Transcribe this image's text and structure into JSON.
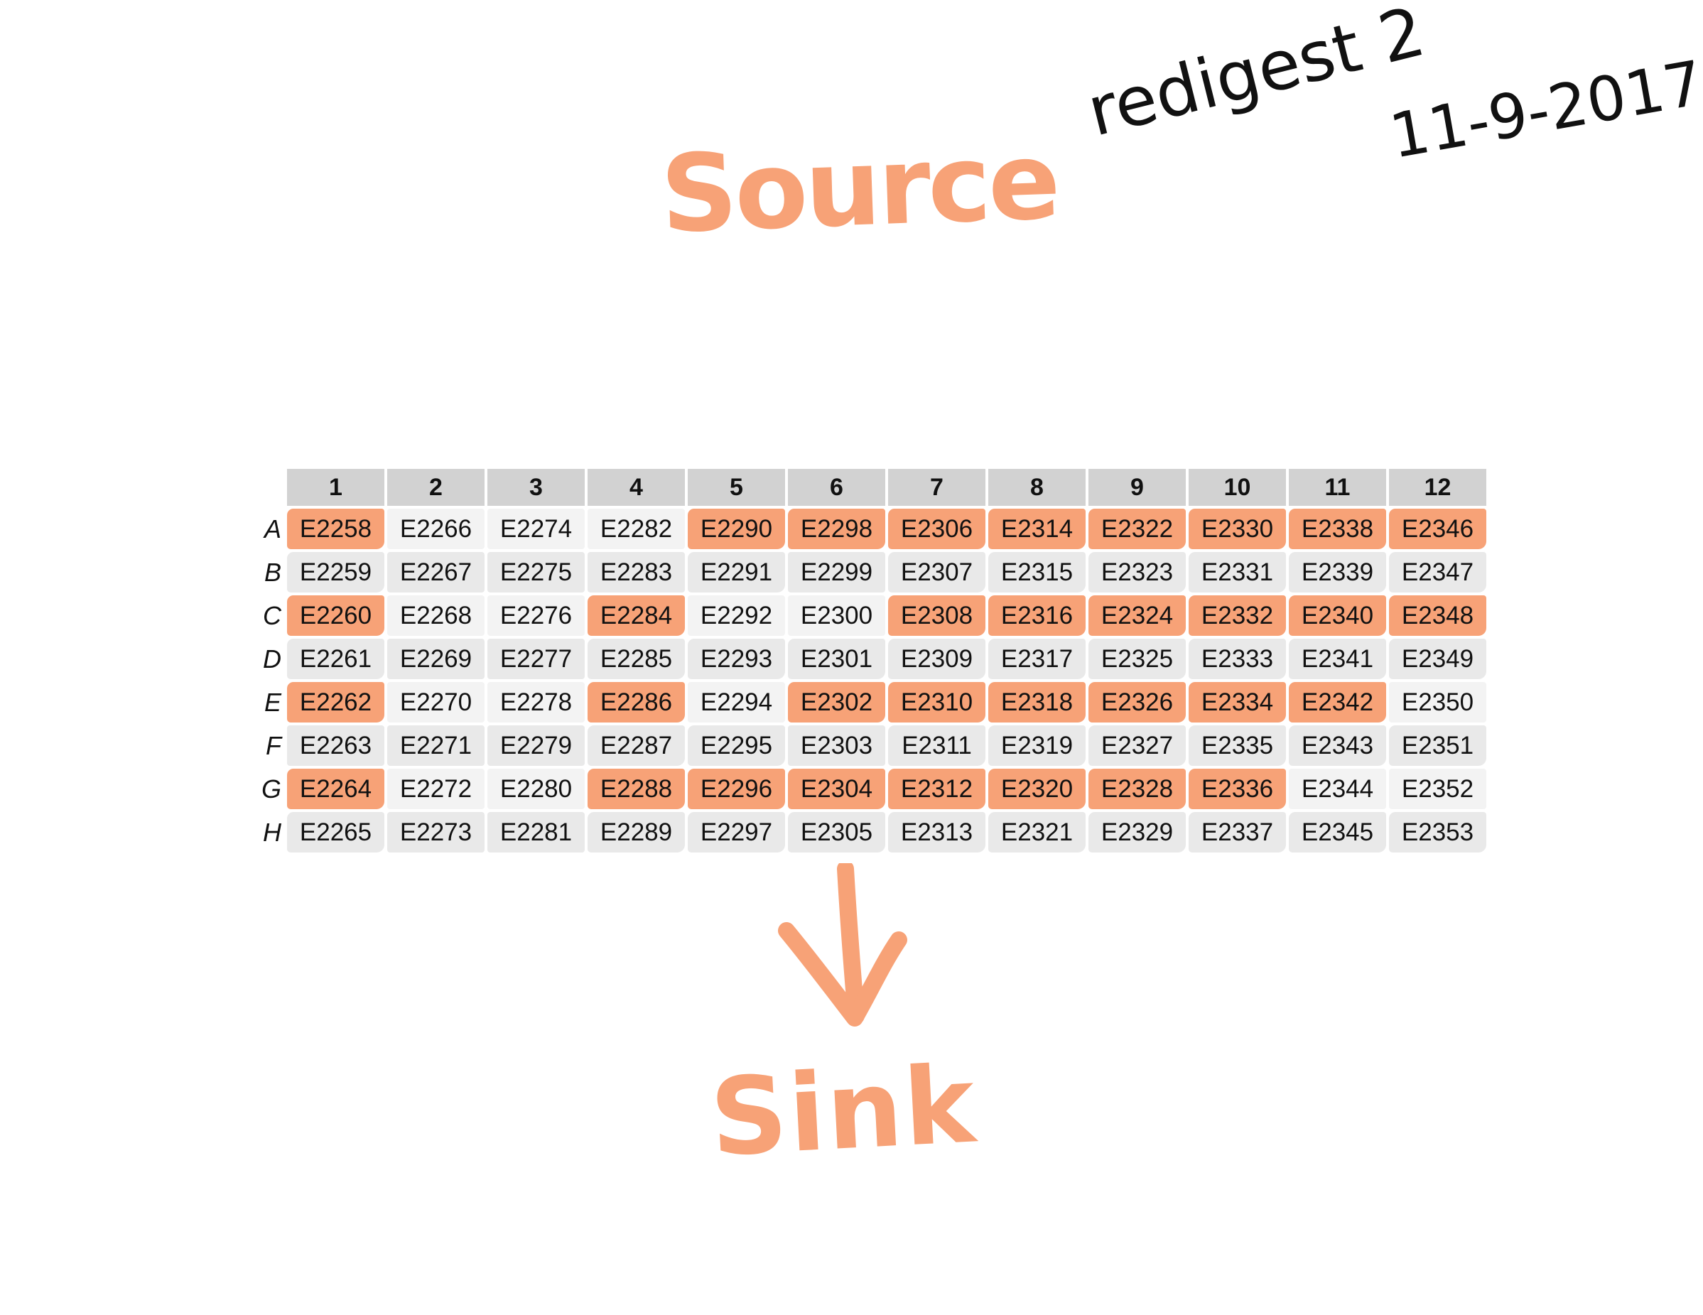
{
  "labels": {
    "source": "Source",
    "sink": "Sink",
    "note_title": "redigest 2",
    "note_date": "11-9-2017"
  },
  "colors": {
    "marker": "#f7a277",
    "header_bg": "#d2d2d2",
    "ink": "#111111"
  },
  "plate": {
    "columns": [
      "1",
      "2",
      "3",
      "4",
      "5",
      "6",
      "7",
      "8",
      "9",
      "10",
      "11",
      "12"
    ],
    "rows": [
      {
        "label": "A",
        "wells": [
          {
            "id": "E2258",
            "marked": true
          },
          {
            "id": "E2266",
            "marked": false
          },
          {
            "id": "E2274",
            "marked": false
          },
          {
            "id": "E2282",
            "marked": false
          },
          {
            "id": "E2290",
            "marked": true
          },
          {
            "id": "E2298",
            "marked": true
          },
          {
            "id": "E2306",
            "marked": true
          },
          {
            "id": "E2314",
            "marked": true
          },
          {
            "id": "E2322",
            "marked": true
          },
          {
            "id": "E2330",
            "marked": true
          },
          {
            "id": "E2338",
            "marked": true
          },
          {
            "id": "E2346",
            "marked": true
          }
        ]
      },
      {
        "label": "B",
        "wells": [
          {
            "id": "E2259",
            "marked": true
          },
          {
            "id": "E2267",
            "marked": false
          },
          {
            "id": "E2275",
            "marked": false
          },
          {
            "id": "E2283",
            "marked": false
          },
          {
            "id": "E2291",
            "marked": true
          },
          {
            "id": "E2299",
            "marked": false
          },
          {
            "id": "E2307",
            "marked": true
          },
          {
            "id": "E2315",
            "marked": true
          },
          {
            "id": "E2323",
            "marked": true
          },
          {
            "id": "E2331",
            "marked": true
          },
          {
            "id": "E2339",
            "marked": true
          },
          {
            "id": "E2347",
            "marked": true
          }
        ]
      },
      {
        "label": "C",
        "wells": [
          {
            "id": "E2260",
            "marked": true
          },
          {
            "id": "E2268",
            "marked": false
          },
          {
            "id": "E2276",
            "marked": false
          },
          {
            "id": "E2284",
            "marked": true
          },
          {
            "id": "E2292",
            "marked": false
          },
          {
            "id": "E2300",
            "marked": false
          },
          {
            "id": "E2308",
            "marked": true
          },
          {
            "id": "E2316",
            "marked": true
          },
          {
            "id": "E2324",
            "marked": true
          },
          {
            "id": "E2332",
            "marked": true
          },
          {
            "id": "E2340",
            "marked": true
          },
          {
            "id": "E2348",
            "marked": true
          }
        ]
      },
      {
        "label": "D",
        "wells": [
          {
            "id": "E2261",
            "marked": true
          },
          {
            "id": "E2269",
            "marked": false
          },
          {
            "id": "E2277",
            "marked": false
          },
          {
            "id": "E2285",
            "marked": true
          },
          {
            "id": "E2293",
            "marked": true
          },
          {
            "id": "E2301",
            "marked": true
          },
          {
            "id": "E2309",
            "marked": true
          },
          {
            "id": "E2317",
            "marked": true
          },
          {
            "id": "E2325",
            "marked": true
          },
          {
            "id": "E2333",
            "marked": true
          },
          {
            "id": "E2341",
            "marked": true
          },
          {
            "id": "E2349",
            "marked": true
          }
        ]
      },
      {
        "label": "E",
        "wells": [
          {
            "id": "E2262",
            "marked": true
          },
          {
            "id": "E2270",
            "marked": false
          },
          {
            "id": "E2278",
            "marked": false
          },
          {
            "id": "E2286",
            "marked": true
          },
          {
            "id": "E2294",
            "marked": false
          },
          {
            "id": "E2302",
            "marked": true
          },
          {
            "id": "E2310",
            "marked": true
          },
          {
            "id": "E2318",
            "marked": true
          },
          {
            "id": "E2326",
            "marked": true
          },
          {
            "id": "E2334",
            "marked": true
          },
          {
            "id": "E2342",
            "marked": true
          },
          {
            "id": "E2350",
            "marked": false
          }
        ]
      },
      {
        "label": "F",
        "wells": [
          {
            "id": "E2263",
            "marked": false
          },
          {
            "id": "E2271",
            "marked": false
          },
          {
            "id": "E2279",
            "marked": false
          },
          {
            "id": "E2287",
            "marked": true
          },
          {
            "id": "E2295",
            "marked": true
          },
          {
            "id": "E2303",
            "marked": false
          },
          {
            "id": "E2311",
            "marked": true
          },
          {
            "id": "E2319",
            "marked": true
          },
          {
            "id": "E2327",
            "marked": true
          },
          {
            "id": "E2335",
            "marked": true
          },
          {
            "id": "E2343",
            "marked": true
          },
          {
            "id": "E2351",
            "marked": true
          }
        ]
      },
      {
        "label": "G",
        "wells": [
          {
            "id": "E2264",
            "marked": true
          },
          {
            "id": "E2272",
            "marked": false
          },
          {
            "id": "E2280",
            "marked": false
          },
          {
            "id": "E2288",
            "marked": true
          },
          {
            "id": "E2296",
            "marked": true
          },
          {
            "id": "E2304",
            "marked": true
          },
          {
            "id": "E2312",
            "marked": true
          },
          {
            "id": "E2320",
            "marked": true
          },
          {
            "id": "E2328",
            "marked": true
          },
          {
            "id": "E2336",
            "marked": true
          },
          {
            "id": "E2344",
            "marked": false
          },
          {
            "id": "E2352",
            "marked": false
          }
        ]
      },
      {
        "label": "H",
        "wells": [
          {
            "id": "E2265",
            "marked": true
          },
          {
            "id": "E2273",
            "marked": false
          },
          {
            "id": "E2281",
            "marked": false
          },
          {
            "id": "E2289",
            "marked": true
          },
          {
            "id": "E2297",
            "marked": true
          },
          {
            "id": "E2305",
            "marked": true
          },
          {
            "id": "E2313",
            "marked": true
          },
          {
            "id": "E2321",
            "marked": true
          },
          {
            "id": "E2329",
            "marked": true
          },
          {
            "id": "E2337",
            "marked": true
          },
          {
            "id": "E2345",
            "marked": true
          },
          {
            "id": "E2353",
            "marked": true
          }
        ]
      }
    ]
  }
}
